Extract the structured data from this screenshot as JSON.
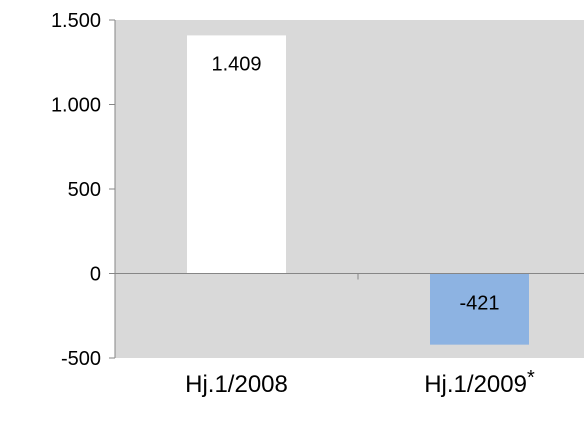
{
  "chart_data": {
    "type": "bar",
    "categories": [
      "Hj.1/2008",
      "Hj.1/2009"
    ],
    "category_suffixes": [
      "",
      "*"
    ],
    "values": [
      1409,
      -421
    ],
    "value_labels": [
      "1.409",
      "-421"
    ],
    "bar_colors": [
      "#ffffff",
      "#8db3e2"
    ],
    "ylim": [
      -500,
      1500
    ],
    "yticks": [
      -500,
      0,
      500,
      1000,
      1500
    ],
    "ytick_labels": [
      "-500",
      "0",
      "500",
      "1.000",
      "1.500"
    ],
    "plot_background": "#d9d9d9",
    "axis_color": "#868686",
    "grid": false,
    "title": "",
    "xlabel": "",
    "ylabel": ""
  }
}
